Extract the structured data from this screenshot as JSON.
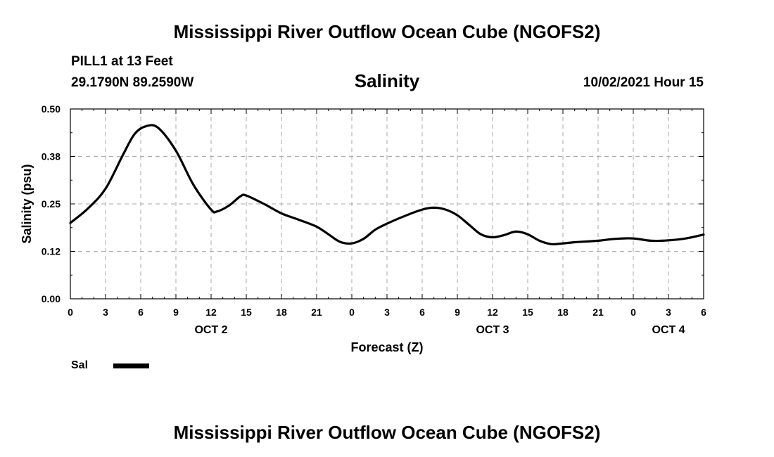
{
  "header": {
    "title": "Mississippi River Outflow Ocean Cube (NGOFS2)",
    "station": "PILL1 at 13 Feet",
    "coords": "29.1790N  89.2590W",
    "variable": "Salinity",
    "datetime": "10/02/2021 Hour 15"
  },
  "footer": {
    "title": "Mississippi River Outflow Ocean Cube (NGOFS2)"
  },
  "legend": {
    "label": "Sal"
  },
  "chart_data": {
    "type": "line",
    "title": "Salinity",
    "xlabel": "Forecast (Z)",
    "ylabel": "Salinity (psu)",
    "xlim": [
      0,
      54
    ],
    "ylim": [
      0.0,
      0.5
    ],
    "x_ticks": [
      0,
      3,
      6,
      9,
      12,
      15,
      18,
      21,
      24,
      27,
      30,
      33,
      36,
      39,
      42,
      45,
      48,
      51,
      54
    ],
    "x_tick_labels": [
      "0",
      "3",
      "6",
      "9",
      "12",
      "15",
      "18",
      "21",
      "0",
      "3",
      "6",
      "9",
      "12",
      "15",
      "18",
      "21",
      "0",
      "3",
      "6"
    ],
    "y_ticks": [
      0.0,
      0.125,
      0.25,
      0.375,
      0.5
    ],
    "y_tick_labels": [
      "0.00",
      "0.12",
      "0.25",
      "0.38",
      "0.50"
    ],
    "day_labels": [
      {
        "x": 12,
        "label": "OCT 2"
      },
      {
        "x": 36,
        "label": "OCT 3"
      },
      {
        "x": 51,
        "label": "OCT 4"
      }
    ],
    "grid": true,
    "series": [
      {
        "name": "Sal",
        "color": "#000000",
        "x": [
          0,
          1.5,
          3,
          4.5,
          5.5,
          6.5,
          7.5,
          9,
          10.5,
          12,
          12.5,
          13.5,
          14.5,
          15,
          16.5,
          18,
          19.5,
          21,
          22,
          23,
          24,
          25,
          26,
          27,
          28.5,
          30,
          31,
          32,
          33,
          34,
          35,
          36,
          37,
          38,
          39,
          40,
          41,
          42,
          43,
          44,
          45,
          46.5,
          48,
          49.5,
          51,
          52.5,
          54
        ],
        "values": [
          0.2,
          0.238,
          0.29,
          0.38,
          0.435,
          0.455,
          0.45,
          0.39,
          0.3,
          0.235,
          0.23,
          0.245,
          0.27,
          0.272,
          0.25,
          0.225,
          0.208,
          0.19,
          0.17,
          0.15,
          0.146,
          0.158,
          0.182,
          0.198,
          0.218,
          0.235,
          0.24,
          0.235,
          0.22,
          0.195,
          0.17,
          0.162,
          0.168,
          0.177,
          0.17,
          0.153,
          0.144,
          0.146,
          0.149,
          0.151,
          0.153,
          0.158,
          0.159,
          0.153,
          0.154,
          0.159,
          0.169
        ]
      }
    ]
  }
}
